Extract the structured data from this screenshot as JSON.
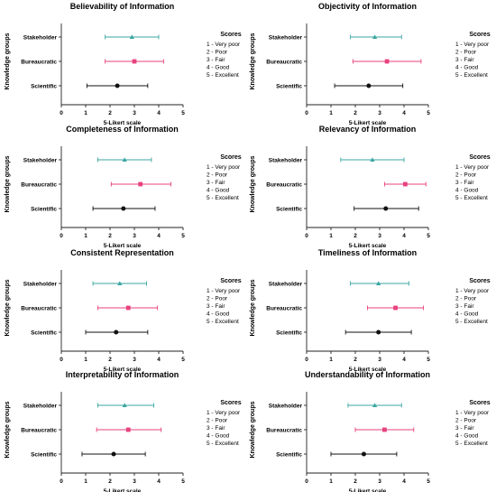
{
  "axis_label_x": "5-Likert scale",
  "axis_label_y": "Knowledge groups",
  "groups": [
    "Stakeholder",
    "Bureaucratic",
    "Scientific"
  ],
  "scores_legend": {
    "title": "Scores",
    "items": [
      "1 - Very poor",
      "2 - Poor",
      "3 - Fair",
      "4 - Good",
      "5 - Excellent"
    ]
  },
  "colors": {
    "Stakeholder": "#3aa6a1",
    "Bureaucratic": "#e8417e",
    "Scientific": "#111111"
  },
  "markers": {
    "Stakeholder": "triangle",
    "Bureaucratic": "square",
    "Scientific": "circle"
  },
  "chart_data": [
    {
      "type": "scatter",
      "title": "Believability of Information",
      "categories": [
        "Stakeholder",
        "Bureaucratic",
        "Scientific"
      ],
      "xlim": [
        0,
        5
      ],
      "xticks": [
        0,
        1,
        2,
        3,
        4,
        5
      ],
      "series": [
        {
          "name": "Stakeholder",
          "mean": 2.9,
          "low": 1.8,
          "high": 4.0
        },
        {
          "name": "Bureaucratic",
          "mean": 3.0,
          "low": 1.8,
          "high": 4.2
        },
        {
          "name": "Scientific",
          "mean": 2.3,
          "low": 1.05,
          "high": 3.55
        }
      ]
    },
    {
      "type": "scatter",
      "title": "Objectivity of Information",
      "categories": [
        "Stakeholder",
        "Bureaucratic",
        "Scientific"
      ],
      "xlim": [
        0,
        5
      ],
      "xticks": [
        0,
        1,
        2,
        3,
        4,
        5
      ],
      "series": [
        {
          "name": "Stakeholder",
          "mean": 2.8,
          "low": 1.8,
          "high": 3.9
        },
        {
          "name": "Bureaucratic",
          "mean": 3.3,
          "low": 1.9,
          "high": 4.7
        },
        {
          "name": "Scientific",
          "mean": 2.55,
          "low": 1.15,
          "high": 3.95
        }
      ]
    },
    {
      "type": "scatter",
      "title": "Completeness of Information",
      "categories": [
        "Stakeholder",
        "Bureaucratic",
        "Scientific"
      ],
      "xlim": [
        0,
        5
      ],
      "xticks": [
        0,
        1,
        2,
        3,
        4,
        5
      ],
      "series": [
        {
          "name": "Stakeholder",
          "mean": 2.6,
          "low": 1.5,
          "high": 3.7
        },
        {
          "name": "Bureaucratic",
          "mean": 3.25,
          "low": 2.05,
          "high": 4.5
        },
        {
          "name": "Scientific",
          "mean": 2.55,
          "low": 1.3,
          "high": 3.85
        }
      ]
    },
    {
      "type": "scatter",
      "title": "Relevancy of Information",
      "categories": [
        "Stakeholder",
        "Bureaucratic",
        "Scientific"
      ],
      "xlim": [
        0,
        5
      ],
      "xticks": [
        0,
        1,
        2,
        3,
        4,
        5
      ],
      "series": [
        {
          "name": "Stakeholder",
          "mean": 2.7,
          "low": 1.4,
          "high": 4.0
        },
        {
          "name": "Bureaucratic",
          "mean": 4.05,
          "low": 3.2,
          "high": 4.9
        },
        {
          "name": "Scientific",
          "mean": 3.25,
          "low": 1.95,
          "high": 4.6
        }
      ]
    },
    {
      "type": "scatter",
      "title": "Consistent Representation",
      "categories": [
        "Stakeholder",
        "Bureaucratic",
        "Scientific"
      ],
      "xlim": [
        0,
        5
      ],
      "xticks": [
        0,
        1,
        2,
        3,
        4,
        5
      ],
      "series": [
        {
          "name": "Stakeholder",
          "mean": 2.4,
          "low": 1.3,
          "high": 3.5
        },
        {
          "name": "Bureaucratic",
          "mean": 2.75,
          "low": 1.5,
          "high": 3.95
        },
        {
          "name": "Scientific",
          "mean": 2.25,
          "low": 1.0,
          "high": 3.55
        }
      ]
    },
    {
      "type": "scatter",
      "title": "Timeliness of Information",
      "categories": [
        "Stakeholder",
        "Bureaucratic",
        "Scientific"
      ],
      "xlim": [
        0,
        5
      ],
      "xticks": [
        0,
        1,
        2,
        3,
        4,
        5
      ],
      "series": [
        {
          "name": "Stakeholder",
          "mean": 2.95,
          "low": 1.8,
          "high": 4.2
        },
        {
          "name": "Bureaucratic",
          "mean": 3.65,
          "low": 2.5,
          "high": 4.8
        },
        {
          "name": "Scientific",
          "mean": 2.95,
          "low": 1.6,
          "high": 4.3
        }
      ]
    },
    {
      "type": "scatter",
      "title": "Interpretability of Information",
      "categories": [
        "Stakeholder",
        "Bureaucratic",
        "Scientific"
      ],
      "xlim": [
        0,
        5
      ],
      "xticks": [
        0,
        1,
        2,
        3,
        4,
        5
      ],
      "series": [
        {
          "name": "Stakeholder",
          "mean": 2.6,
          "low": 1.5,
          "high": 3.8
        },
        {
          "name": "Bureaucratic",
          "mean": 2.75,
          "low": 1.45,
          "high": 4.1
        },
        {
          "name": "Scientific",
          "mean": 2.15,
          "low": 0.85,
          "high": 3.45
        }
      ]
    },
    {
      "type": "scatter",
      "title": "Understandability of Information",
      "categories": [
        "Stakeholder",
        "Bureaucratic",
        "Scientific"
      ],
      "xlim": [
        0,
        5
      ],
      "xticks": [
        0,
        1,
        2,
        3,
        4,
        5
      ],
      "series": [
        {
          "name": "Stakeholder",
          "mean": 2.8,
          "low": 1.7,
          "high": 3.9
        },
        {
          "name": "Bureaucratic",
          "mean": 3.2,
          "low": 2.0,
          "high": 4.4
        },
        {
          "name": "Scientific",
          "mean": 2.35,
          "low": 1.0,
          "high": 3.7
        }
      ]
    }
  ]
}
